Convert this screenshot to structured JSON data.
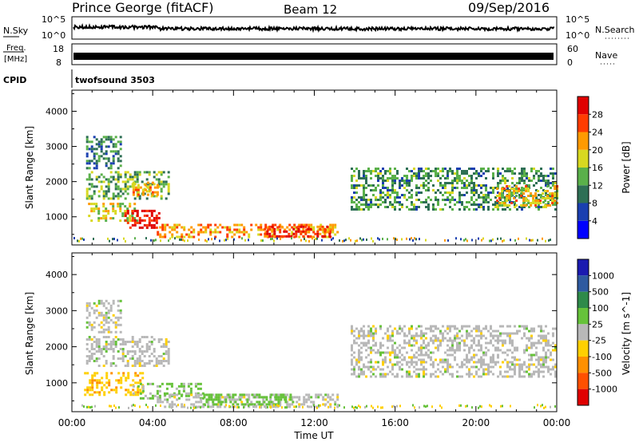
{
  "header": {
    "title": "Prince George (fitACF)",
    "beam": "Beam 12",
    "date": "09/Sep/2016"
  },
  "status_panels": {
    "nsky": {
      "label": "N.Sky",
      "tick_top": "10^5",
      "tick_bottom": "10^0"
    },
    "nsearch": {
      "label": "N.Search",
      "tick_top": "10^5",
      "tick_bottom": "10^0"
    },
    "freq": {
      "label_line1": "Freq.",
      "label_line2": "[MHz]",
      "tick_top": "18",
      "tick_bottom": "8"
    },
    "nave": {
      "label": "Nave",
      "tick_top": "60",
      "tick_bottom": "0"
    },
    "cpid": {
      "label": "CPID",
      "value": "twofsound 3503"
    }
  },
  "chart_data": [
    {
      "type": "heatmap",
      "name": "power",
      "ylabel": "Slant Range [km]",
      "ylim": [
        200,
        4600
      ],
      "yticks": [
        1000,
        2000,
        3000,
        4000
      ],
      "xlim_hours": [
        0,
        24
      ],
      "colorbar": {
        "label": "Power [dB]",
        "ticks": [
          4,
          8,
          12,
          16,
          20,
          24,
          28
        ],
        "range": [
          0,
          32
        ],
        "colors": [
          "#0000ff",
          "#1a3fb0",
          "#2e6f55",
          "#5ab04a",
          "#d8d820",
          "#ff9a00",
          "#ff3c00",
          "#e00000"
        ]
      },
      "regions": [
        {
          "x": [
            0.7,
            2.4
          ],
          "y": [
            2400,
            3300
          ],
          "value": 10
        },
        {
          "x": [
            0.7,
            4.8
          ],
          "y": [
            1500,
            2300
          ],
          "value": 14
        },
        {
          "x": [
            3.0,
            4.2
          ],
          "y": [
            1600,
            2000
          ],
          "value": 22
        },
        {
          "x": [
            0.8,
            3.2
          ],
          "y": [
            900,
            1400
          ],
          "value": 18
        },
        {
          "x": [
            2.6,
            4.3
          ],
          "y": [
            700,
            1200
          ],
          "value": 30
        },
        {
          "x": [
            4.2,
            13.2
          ],
          "y": [
            400,
            800
          ],
          "value": 22
        },
        {
          "x": [
            9.5,
            12.8
          ],
          "y": [
            450,
            750
          ],
          "value": 28
        },
        {
          "x": [
            13.8,
            24.0
          ],
          "y": [
            1200,
            2400
          ],
          "value": 12
        },
        {
          "x": [
            21.0,
            24.0
          ],
          "y": [
            1300,
            1900
          ],
          "value": 20
        }
      ]
    },
    {
      "type": "heatmap",
      "name": "velocity",
      "ylabel": "Slant Range [km]",
      "ylim": [
        200,
        4600
      ],
      "yticks": [
        1000,
        2000,
        3000,
        4000
      ],
      "xlim_hours": [
        0,
        24
      ],
      "colorbar": {
        "label": "Velocity [m s^-1]",
        "ticks": [
          "1000",
          "500",
          "100",
          "25",
          "-25",
          "-100",
          "-500",
          "-1000"
        ],
        "colors": [
          "#1a1ab0",
          "#2e5aa0",
          "#2e8a4a",
          "#66c23a",
          "#b8b8b8",
          "#ffd000",
          "#ff9000",
          "#ff5000",
          "#e00000"
        ]
      },
      "regions": [
        {
          "x": [
            0.7,
            2.4
          ],
          "y": [
            2400,
            3300
          ],
          "value": 0
        },
        {
          "x": [
            0.7,
            4.8
          ],
          "y": [
            1500,
            2300
          ],
          "value": 0
        },
        {
          "x": [
            0.6,
            3.5
          ],
          "y": [
            700,
            1300
          ],
          "value": -80
        },
        {
          "x": [
            3.0,
            6.5
          ],
          "y": [
            600,
            1000
          ],
          "value": 40
        },
        {
          "x": [
            4.2,
            13.2
          ],
          "y": [
            350,
            700
          ],
          "value": 0
        },
        {
          "x": [
            6.5,
            11.0
          ],
          "y": [
            400,
            700
          ],
          "value": 60
        },
        {
          "x": [
            13.8,
            24.0
          ],
          "y": [
            1200,
            2600
          ],
          "value": 0
        }
      ]
    }
  ],
  "x_axis": {
    "label": "Time UT",
    "ticks": [
      "00:00",
      "04:00",
      "08:00",
      "12:00",
      "16:00",
      "20:00",
      "00:00"
    ]
  }
}
